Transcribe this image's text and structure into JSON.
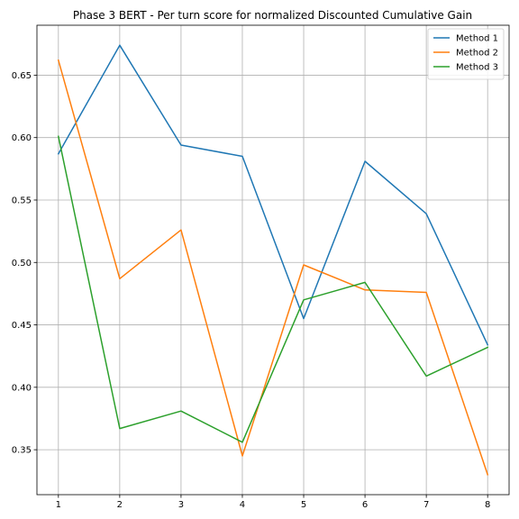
{
  "chart_data": {
    "type": "line",
    "title": "Phase 3 BERT - Per turn score for normalized Discounted Cumulative Gain",
    "xlabel": "",
    "ylabel": "",
    "x": [
      1,
      2,
      3,
      4,
      5,
      6,
      7,
      8
    ],
    "xlim": [
      0.65,
      8.35
    ],
    "ylim": [
      0.314,
      0.69
    ],
    "xticks": [
      "1",
      "2",
      "3",
      "4",
      "5",
      "6",
      "7",
      "8"
    ],
    "yticks": [
      "0.35",
      "0.40",
      "0.45",
      "0.50",
      "0.55",
      "0.60",
      "0.65"
    ],
    "grid": true,
    "legend_position": "top-right",
    "series": [
      {
        "name": "Method 1",
        "color": "#1f77b4",
        "values": [
          0.587,
          0.674,
          0.594,
          0.585,
          0.455,
          0.581,
          0.539,
          0.434
        ]
      },
      {
        "name": "Method 2",
        "color": "#ff7f0e",
        "values": [
          0.662,
          0.487,
          0.526,
          0.345,
          0.498,
          0.478,
          0.476,
          0.33
        ]
      },
      {
        "name": "Method 3",
        "color": "#2ca02c",
        "values": [
          0.601,
          0.367,
          0.381,
          0.356,
          0.47,
          0.484,
          0.409,
          0.432
        ]
      }
    ]
  }
}
